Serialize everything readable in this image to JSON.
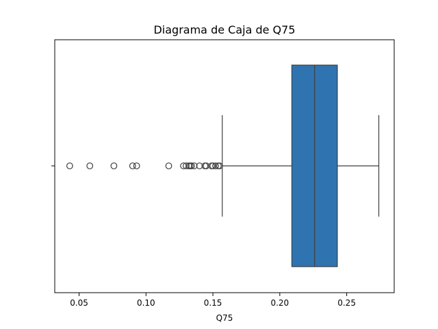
{
  "chart_data": {
    "type": "box",
    "title": "Diagrama de Caja de Q75",
    "xlabel": "Q75",
    "ylabel": "",
    "xlim": [
      0.0318,
      0.2855
    ],
    "xticks": [
      0.05,
      0.1,
      0.15,
      0.2,
      0.25
    ],
    "xtick_labels": [
      "0.05",
      "0.10",
      "0.15",
      "0.20",
      "0.25"
    ],
    "grid": false,
    "box": {
      "whisker_low": 0.157,
      "q1": 0.209,
      "median": 0.226,
      "q3": 0.243,
      "whisker_high": 0.274,
      "color": "#2f74b0",
      "edge_color": "#3d3d3d"
    },
    "outliers": [
      0.043,
      0.058,
      0.076,
      0.09,
      0.093,
      0.117,
      0.128,
      0.13,
      0.132,
      0.133,
      0.134,
      0.136,
      0.14,
      0.144,
      0.145,
      0.149,
      0.15,
      0.152,
      0.154,
      0.155
    ]
  }
}
